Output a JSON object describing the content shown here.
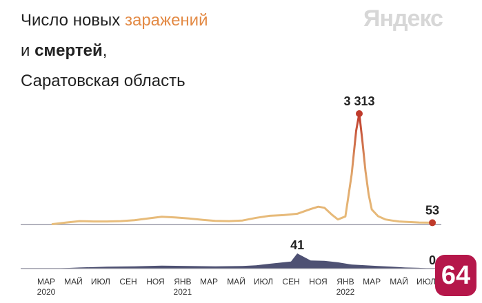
{
  "header": {
    "title_part1": "Число новых ",
    "title_accent": "заражений",
    "title_part2": "и ",
    "title_bold": "смертей",
    "title_part3": ",",
    "subtitle": "Саратовская область"
  },
  "brand": {
    "logo_text": "Яндекс"
  },
  "badge": {
    "text": "64",
    "color": "#b5174a"
  },
  "colors": {
    "infections_line": "#e8be7c",
    "infections_peak": "#bf3a2b",
    "deaths_area": "#4e5173",
    "baseline": "#9a9aa8"
  },
  "chart_data": [
    {
      "type": "line",
      "series": [
        {
          "name": "заражений",
          "x": [
            "2020-03-15",
            "2020-04-15",
            "2020-05-15",
            "2020-06-15",
            "2020-07-15",
            "2020-08-15",
            "2020-09-15",
            "2020-10-15",
            "2020-11-15",
            "2020-12-15",
            "2021-01-15",
            "2021-02-15",
            "2021-03-15",
            "2021-04-15",
            "2021-05-15",
            "2021-06-15",
            "2021-07-15",
            "2021-08-15",
            "2021-09-15",
            "2021-10-15",
            "2021-11-01",
            "2021-11-15",
            "2021-12-01",
            "2021-12-15",
            "2022-01-01",
            "2022-01-15",
            "2022-01-25",
            "2022-02-01",
            "2022-02-08",
            "2022-02-15",
            "2022-02-22",
            "2022-03-01",
            "2022-03-15",
            "2022-04-01",
            "2022-04-15",
            "2022-05-01",
            "2022-05-15",
            "2022-06-01",
            "2022-06-15",
            "2022-07-01",
            "2022-07-15"
          ],
          "values": [
            10,
            60,
            100,
            90,
            90,
            100,
            130,
            180,
            230,
            210,
            180,
            140,
            110,
            100,
            120,
            200,
            260,
            280,
            320,
            460,
            530,
            500,
            300,
            150,
            240,
            1500,
            2800,
            3313,
            2500,
            1600,
            900,
            450,
            250,
            150,
            120,
            90,
            80,
            70,
            60,
            55,
            53
          ]
        }
      ],
      "annotations": [
        {
          "label": "3 313",
          "x": "2022-02-01",
          "value": 3313
        },
        {
          "label": "53",
          "x": "2022-07-15",
          "value": 53
        }
      ]
    },
    {
      "type": "area",
      "series": [
        {
          "name": "смертей",
          "x": [
            "2020-03-15",
            "2020-05-15",
            "2020-07-15",
            "2020-09-15",
            "2020-11-15",
            "2021-01-15",
            "2021-03-15",
            "2021-05-15",
            "2021-06-15",
            "2021-07-15",
            "2021-08-15",
            "2021-09-01",
            "2021-09-15",
            "2021-10-15",
            "2021-11-15",
            "2021-12-15",
            "2022-01-15",
            "2022-02-15",
            "2022-03-15",
            "2022-04-15",
            "2022-05-15",
            "2022-06-15",
            "2022-07-15"
          ],
          "values": [
            0,
            3,
            5,
            6,
            8,
            7,
            6,
            7,
            9,
            13,
            17,
            19,
            41,
            22,
            21,
            17,
            11,
            9,
            7,
            5,
            3,
            2,
            0
          ]
        }
      ],
      "annotations": [
        {
          "label": "41",
          "x": "2021-09-15",
          "value": 41
        },
        {
          "label": "0",
          "x": "2022-07-15",
          "value": 0
        }
      ]
    }
  ],
  "x_axis": {
    "ticks": [
      {
        "date": "2020-03-01",
        "label": "МАР",
        "year": "2020"
      },
      {
        "date": "2020-05-01",
        "label": "МАЙ",
        "year": ""
      },
      {
        "date": "2020-07-01",
        "label": "ИЮЛ",
        "year": ""
      },
      {
        "date": "2020-09-01",
        "label": "СЕН",
        "year": ""
      },
      {
        "date": "2020-11-01",
        "label": "НОЯ",
        "year": ""
      },
      {
        "date": "2021-01-01",
        "label": "ЯНВ",
        "year": "2021"
      },
      {
        "date": "2021-03-01",
        "label": "МАР",
        "year": ""
      },
      {
        "date": "2021-05-01",
        "label": "МАЙ",
        "year": ""
      },
      {
        "date": "2021-07-01",
        "label": "ИЮЛ",
        "year": ""
      },
      {
        "date": "2021-09-01",
        "label": "СЕН",
        "year": ""
      },
      {
        "date": "2021-11-01",
        "label": "НОЯ",
        "year": ""
      },
      {
        "date": "2022-01-01",
        "label": "ЯНВ",
        "year": "2022"
      },
      {
        "date": "2022-03-01",
        "label": "МАР",
        "year": ""
      },
      {
        "date": "2022-05-01",
        "label": "МАЙ",
        "year": ""
      },
      {
        "date": "2022-07-01",
        "label": "ИЮЛ",
        "year": ""
      }
    ]
  }
}
